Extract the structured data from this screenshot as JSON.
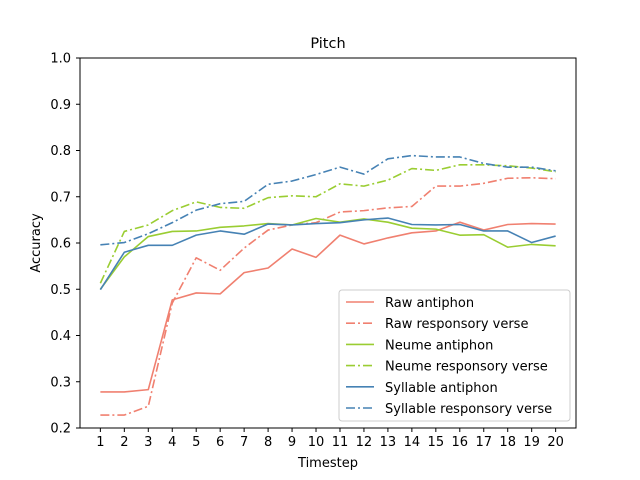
{
  "chart_data": {
    "type": "line",
    "title": "Pitch",
    "xlabel": "Timestep",
    "ylabel": "Accuracy",
    "x": [
      1,
      2,
      3,
      4,
      5,
      6,
      7,
      8,
      9,
      10,
      11,
      12,
      13,
      14,
      15,
      16,
      17,
      18,
      19,
      20
    ],
    "xticks": [
      "1",
      "2",
      "3",
      "4",
      "5",
      "6",
      "7",
      "8",
      "9",
      "10",
      "11",
      "12",
      "13",
      "14",
      "15",
      "16",
      "17",
      "18",
      "19",
      "20"
    ],
    "ylim": [
      0.2,
      1.0
    ],
    "yticks": [
      "0.2",
      "0.3",
      "0.4",
      "0.5",
      "0.6",
      "0.7",
      "0.8",
      "0.9",
      "1.0"
    ],
    "grid": false,
    "legend_position": "lower-right",
    "series": [
      {
        "name": "Raw antiphon",
        "color": "#f08070",
        "style": "solid",
        "values": [
          0.278,
          0.278,
          0.283,
          0.477,
          0.492,
          0.49,
          0.536,
          0.546,
          0.587,
          0.569,
          0.617,
          0.598,
          0.611,
          0.622,
          0.626,
          0.645,
          0.628,
          0.64,
          0.642,
          0.641
        ]
      },
      {
        "name": "Raw responsory verse",
        "color": "#f08070",
        "style": "dashdot",
        "values": [
          0.228,
          0.228,
          0.247,
          0.47,
          0.568,
          0.541,
          0.589,
          0.628,
          0.639,
          0.644,
          0.667,
          0.67,
          0.676,
          0.679,
          0.723,
          0.723,
          0.729,
          0.74,
          0.741,
          0.739
        ]
      },
      {
        "name": "Neume antiphon",
        "color": "#9acd32",
        "style": "solid",
        "values": [
          0.5,
          0.57,
          0.614,
          0.625,
          0.626,
          0.634,
          0.637,
          0.642,
          0.639,
          0.653,
          0.645,
          0.652,
          0.645,
          0.632,
          0.63,
          0.617,
          0.618,
          0.591,
          0.597,
          0.594
        ]
      },
      {
        "name": "Neume responsory verse",
        "color": "#9acd32",
        "style": "dashdot",
        "values": [
          0.513,
          0.625,
          0.639,
          0.67,
          0.689,
          0.677,
          0.675,
          0.698,
          0.702,
          0.7,
          0.728,
          0.723,
          0.736,
          0.761,
          0.757,
          0.769,
          0.769,
          0.767,
          0.762,
          0.754
        ]
      },
      {
        "name": "Syllable antiphon",
        "color": "#4682b4",
        "style": "solid",
        "values": [
          0.499,
          0.58,
          0.595,
          0.595,
          0.617,
          0.626,
          0.619,
          0.641,
          0.639,
          0.642,
          0.644,
          0.65,
          0.654,
          0.64,
          0.639,
          0.64,
          0.626,
          0.626,
          0.601,
          0.615
        ]
      },
      {
        "name": "Syllable responsory verse",
        "color": "#4682b4",
        "style": "dashdot",
        "values": [
          0.596,
          0.601,
          0.62,
          0.644,
          0.671,
          0.685,
          0.69,
          0.727,
          0.734,
          0.748,
          0.764,
          0.749,
          0.782,
          0.789,
          0.786,
          0.786,
          0.772,
          0.764,
          0.764,
          0.756
        ]
      }
    ]
  }
}
